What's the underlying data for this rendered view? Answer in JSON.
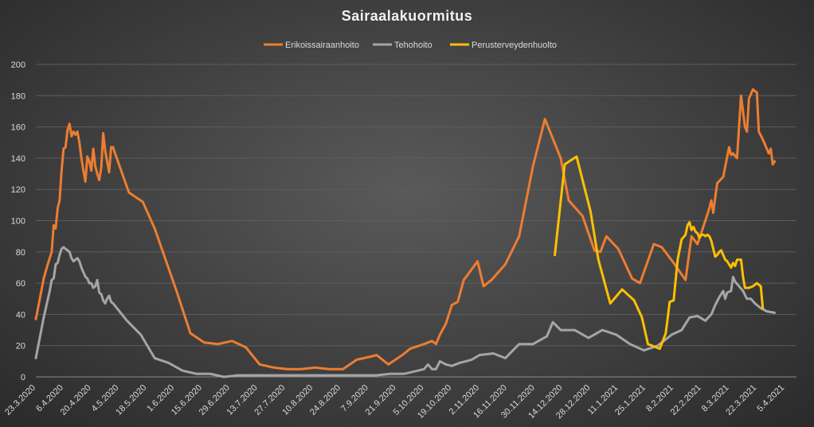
{
  "chart_data": {
    "type": "line",
    "title": "Sairaalakuormitus",
    "xlabel": "",
    "ylabel": "",
    "ylim": [
      0,
      200
    ],
    "yticks": [
      0,
      20,
      40,
      60,
      80,
      100,
      120,
      140,
      160,
      180,
      200
    ],
    "grid": true,
    "legend": "top-center",
    "x_range": [
      "23.3.2020",
      "11.4.2021"
    ],
    "xtick_labels": [
      "23.3.2020",
      "6.4.2020",
      "20.4.2020",
      "4.5.2020",
      "18.5.2020",
      "1.6.2020",
      "15.6.2020",
      "29.6.2020",
      "13.7.2020",
      "27.7.2020",
      "10.8.2020",
      "24.8.2020",
      "7.9.2020",
      "21.9.2020",
      "5.10.2020",
      "19.10.2020",
      "2.11.2020",
      "16.11.2020",
      "30.11.2020",
      "14.12.2020",
      "28.12.2020",
      "11.1.2021",
      "25.1.2021",
      "8.2.2021",
      "22.2.2021",
      "8.3.2021",
      "22.3.2021",
      "5.4.2021"
    ],
    "series": [
      {
        "name": "Erikoissairaanhoito",
        "color": "#ed7d31",
        "points": [
          [
            "23.3.2020",
            37
          ],
          [
            "25.3.2020",
            50
          ],
          [
            "27.3.2020",
            63
          ],
          [
            "29.3.2020",
            72
          ],
          [
            "31.3.2020",
            80
          ],
          [
            "1.4.2020",
            97
          ],
          [
            "2.4.2020",
            95
          ],
          [
            "3.4.2020",
            108
          ],
          [
            "4.4.2020",
            113
          ],
          [
            "5.4.2020",
            132
          ],
          [
            "6.4.2020",
            146
          ],
          [
            "7.4.2020",
            147
          ],
          [
            "8.4.2020",
            158
          ],
          [
            "9.4.2020",
            162
          ],
          [
            "10.4.2020",
            154
          ],
          [
            "11.4.2020",
            157
          ],
          [
            "12.4.2020",
            155
          ],
          [
            "13.4.2020",
            157
          ],
          [
            "14.4.2020",
            150
          ],
          [
            "15.4.2020",
            140
          ],
          [
            "16.4.2020",
            132
          ],
          [
            "17.4.2020",
            125
          ],
          [
            "18.4.2020",
            141
          ],
          [
            "19.4.2020",
            138
          ],
          [
            "20.4.2020",
            132
          ],
          [
            "21.4.2020",
            146
          ],
          [
            "22.4.2020",
            135
          ],
          [
            "23.4.2020",
            130
          ],
          [
            "24.4.2020",
            126
          ],
          [
            "25.4.2020",
            134
          ],
          [
            "26.4.2020",
            156
          ],
          [
            "27.4.2020",
            145
          ],
          [
            "28.4.2020",
            138
          ],
          [
            "29.4.2020",
            131
          ],
          [
            "30.4.2020",
            147
          ],
          [
            "1.5.2020",
            147
          ],
          [
            "2.5.2020",
            143
          ],
          [
            "9.5.2020",
            118
          ],
          [
            "16.5.2020",
            112
          ],
          [
            "22.5.2020",
            95
          ],
          [
            "2.6.2020",
            55
          ],
          [
            "9.6.2020",
            28
          ],
          [
            "16.6.2020",
            22
          ],
          [
            "23.6.2020",
            21
          ],
          [
            "30.6.2020",
            23
          ],
          [
            "7.7.2020",
            19
          ],
          [
            "14.7.2020",
            8
          ],
          [
            "21.7.2020",
            6
          ],
          [
            "28.7.2020",
            5
          ],
          [
            "4.8.2020",
            5
          ],
          [
            "11.8.2020",
            6
          ],
          [
            "18.8.2020",
            5
          ],
          [
            "25.8.2020",
            5
          ],
          [
            "1.9.2020",
            11
          ],
          [
            "8.9.2020",
            13
          ],
          [
            "11.9.2020",
            14
          ],
          [
            "17.9.2020",
            8
          ],
          [
            "24.9.2020",
            14
          ],
          [
            "28.9.2020",
            18
          ],
          [
            "5.10.2020",
            21
          ],
          [
            "9.10.2020",
            23
          ],
          [
            "11.10.2020",
            21
          ],
          [
            "13.10.2020",
            27
          ],
          [
            "16.10.2020",
            34
          ],
          [
            "19.10.2020",
            46
          ],
          [
            "22.10.2020",
            48
          ],
          [
            "25.10.2020",
            62
          ],
          [
            "1.11.2020",
            74
          ],
          [
            "4.11.2020",
            58
          ],
          [
            "8.11.2020",
            62
          ],
          [
            "15.11.2020",
            72
          ],
          [
            "22.11.2020",
            90
          ],
          [
            "29.11.2020",
            135
          ],
          [
            "5.12.2020",
            165
          ],
          [
            "13.12.2020",
            140
          ],
          [
            "17.12.2020",
            113
          ],
          [
            "24.12.2020",
            103
          ],
          [
            "30.12.2020",
            81
          ],
          [
            "2.1.2021",
            80
          ],
          [
            "5.1.2021",
            90
          ],
          [
            "11.1.2021",
            82
          ],
          [
            "18.1.2021",
            63
          ],
          [
            "22.1.2021",
            60
          ],
          [
            "29.1.2021",
            85
          ],
          [
            "2.2.2021",
            83
          ],
          [
            "8.2.2021",
            73
          ],
          [
            "14.2.2021",
            62
          ],
          [
            "17.2.2021",
            90
          ],
          [
            "20.2.2021",
            85
          ],
          [
            "24.2.2021",
            100
          ],
          [
            "26.2.2021",
            108
          ],
          [
            "27.2.2021",
            113
          ],
          [
            "28.2.2021",
            105
          ],
          [
            "1.3.2021",
            115
          ],
          [
            "2.3.2021",
            124
          ],
          [
            "5.3.2021",
            128
          ],
          [
            "8.3.2021",
            147
          ],
          [
            "9.3.2021",
            142
          ],
          [
            "10.3.2021",
            143
          ],
          [
            "12.3.2021",
            140
          ],
          [
            "14.3.2021",
            180
          ],
          [
            "16.3.2021",
            160
          ],
          [
            "17.3.2021",
            157
          ],
          [
            "18.3.2021",
            178
          ],
          [
            "20.3.2021",
            184
          ],
          [
            "22.3.2021",
            182
          ],
          [
            "23.3.2021",
            157
          ],
          [
            "25.3.2021",
            152
          ],
          [
            "27.3.2021",
            146
          ],
          [
            "28.3.2021",
            143
          ],
          [
            "29.3.2021",
            146
          ],
          [
            "30.3.2021",
            136
          ],
          [
            "31.3.2021",
            138
          ]
        ]
      },
      {
        "name": "Tehohoito",
        "color": "#a5a5a5",
        "points": [
          [
            "23.3.2020",
            12
          ],
          [
            "27.3.2020",
            38
          ],
          [
            "30.3.2020",
            55
          ],
          [
            "31.3.2020",
            62
          ],
          [
            "1.4.2020",
            63
          ],
          [
            "2.4.2020",
            72
          ],
          [
            "3.4.2020",
            73
          ],
          [
            "4.4.2020",
            78
          ],
          [
            "5.4.2020",
            82
          ],
          [
            "6.4.2020",
            83
          ],
          [
            "7.4.2020",
            82
          ],
          [
            "8.4.2020",
            81
          ],
          [
            "9.4.2020",
            80
          ],
          [
            "10.4.2020",
            76
          ],
          [
            "11.4.2020",
            74
          ],
          [
            "12.4.2020",
            75
          ],
          [
            "13.4.2020",
            76
          ],
          [
            "14.4.2020",
            74
          ],
          [
            "15.4.2020",
            70
          ],
          [
            "16.4.2020",
            67
          ],
          [
            "17.4.2020",
            64
          ],
          [
            "18.4.2020",
            63
          ],
          [
            "19.4.2020",
            60
          ],
          [
            "20.4.2020",
            60
          ],
          [
            "21.4.2020",
            57
          ],
          [
            "22.4.2020",
            58
          ],
          [
            "23.4.2020",
            62
          ],
          [
            "24.4.2020",
            54
          ],
          [
            "25.4.2020",
            53
          ],
          [
            "26.4.2020",
            49
          ],
          [
            "27.4.2020",
            47
          ],
          [
            "28.4.2020",
            50
          ],
          [
            "29.4.2020",
            52
          ],
          [
            "30.4.2020",
            48
          ],
          [
            "1.5.2020",
            47
          ],
          [
            "8.5.2020",
            36
          ],
          [
            "15.5.2020",
            27
          ],
          [
            "22.5.2020",
            12
          ],
          [
            "29.5.2020",
            9
          ],
          [
            "5.6.2020",
            4
          ],
          [
            "12.6.2020",
            2
          ],
          [
            "19.6.2020",
            2
          ],
          [
            "26.6.2020",
            0
          ],
          [
            "3.7.2020",
            1
          ],
          [
            "10.7.2020",
            1
          ],
          [
            "17.7.2020",
            1
          ],
          [
            "24.7.2020",
            1
          ],
          [
            "31.7.2020",
            1
          ],
          [
            "7.8.2020",
            1
          ],
          [
            "14.8.2020",
            1
          ],
          [
            "21.8.2020",
            1
          ],
          [
            "28.8.2020",
            1
          ],
          [
            "4.9.2020",
            1
          ],
          [
            "11.9.2020",
            1
          ],
          [
            "18.9.2020",
            2
          ],
          [
            "25.9.2020",
            2
          ],
          [
            "2.10.2020",
            4
          ],
          [
            "5.10.2020",
            5
          ],
          [
            "7.10.2020",
            8
          ],
          [
            "9.10.2020",
            5
          ],
          [
            "11.10.2020",
            5
          ],
          [
            "13.10.2020",
            10
          ],
          [
            "16.10.2020",
            8
          ],
          [
            "19.10.2020",
            7
          ],
          [
            "23.10.2020",
            9
          ],
          [
            "26.10.2020",
            10
          ],
          [
            "29.10.2020",
            11
          ],
          [
            "2.11.2020",
            14
          ],
          [
            "9.11.2020",
            15
          ],
          [
            "15.11.2020",
            12
          ],
          [
            "22.11.2020",
            21
          ],
          [
            "29.11.2020",
            21
          ],
          [
            "6.12.2020",
            26
          ],
          [
            "9.12.2020",
            35
          ],
          [
            "13.12.2020",
            30
          ],
          [
            "20.12.2020",
            30
          ],
          [
            "27.12.2020",
            25
          ],
          [
            "3.1.2021",
            30
          ],
          [
            "10.1.2021",
            27
          ],
          [
            "17.1.2021",
            21
          ],
          [
            "24.1.2021",
            17
          ],
          [
            "31.1.2021",
            20
          ],
          [
            "7.2.2021",
            27
          ],
          [
            "12.2.2021",
            30
          ],
          [
            "16.2.2021",
            38
          ],
          [
            "20.2.2021",
            39
          ],
          [
            "24.2.2021",
            36
          ],
          [
            "27.2.2021",
            40
          ],
          [
            "1.3.2021",
            46
          ],
          [
            "3.3.2021",
            51
          ],
          [
            "5.3.2021",
            55
          ],
          [
            "6.3.2021",
            50
          ],
          [
            "7.3.2021",
            54
          ],
          [
            "9.3.2021",
            55
          ],
          [
            "10.3.2021",
            64
          ],
          [
            "11.3.2021",
            61
          ],
          [
            "13.3.2021",
            58
          ],
          [
            "15.3.2021",
            55
          ],
          [
            "17.3.2021",
            50
          ],
          [
            "19.3.2021",
            50
          ],
          [
            "21.3.2021",
            47
          ],
          [
            "24.3.2021",
            44
          ],
          [
            "27.3.2021",
            42
          ],
          [
            "31.3.2021",
            41
          ]
        ]
      },
      {
        "name": "Perusterveydenhuolto",
        "color": "#ffc000",
        "points": [
          [
            "10.12.2020",
            78
          ],
          [
            "15.12.2020",
            136
          ],
          [
            "21.12.2020",
            141
          ],
          [
            "28.12.2020",
            106
          ],
          [
            "1.1.2021",
            75
          ],
          [
            "7.1.2021",
            47
          ],
          [
            "13.1.2021",
            56
          ],
          [
            "19.1.2021",
            49
          ],
          [
            "23.1.2021",
            38
          ],
          [
            "26.1.2021",
            21
          ],
          [
            "1.2.2021",
            18
          ],
          [
            "4.2.2021",
            28
          ],
          [
            "6.2.2021",
            48
          ],
          [
            "8.2.2021",
            49
          ],
          [
            "10.2.2021",
            75
          ],
          [
            "12.2.2021",
            88
          ],
          [
            "14.2.2021",
            91
          ],
          [
            "15.2.2021",
            97
          ],
          [
            "16.2.2021",
            99
          ],
          [
            "17.2.2021",
            94
          ],
          [
            "18.2.2021",
            96
          ],
          [
            "19.2.2021",
            93
          ],
          [
            "20.2.2021",
            92
          ],
          [
            "21.2.2021",
            89
          ],
          [
            "22.2.2021",
            91
          ],
          [
            "23.2.2021",
            91
          ],
          [
            "24.2.2021",
            90
          ],
          [
            "25.2.2021",
            91
          ],
          [
            "26.2.2021",
            90
          ],
          [
            "27.2.2021",
            87
          ],
          [
            "28.2.2021",
            82
          ],
          [
            "1.3.2021",
            77
          ],
          [
            "2.3.2021",
            78
          ],
          [
            "3.3.2021",
            80
          ],
          [
            "4.3.2021",
            81
          ],
          [
            "5.3.2021",
            78
          ],
          [
            "6.3.2021",
            75
          ],
          [
            "7.3.2021",
            74
          ],
          [
            "8.3.2021",
            72
          ],
          [
            "9.3.2021",
            70
          ],
          [
            "10.3.2021",
            73
          ],
          [
            "11.3.2021",
            71
          ],
          [
            "12.3.2021",
            75
          ],
          [
            "13.3.2021",
            75
          ],
          [
            "14.3.2021",
            75
          ],
          [
            "15.3.2021",
            64
          ],
          [
            "16.3.2021",
            57
          ],
          [
            "18.3.2021",
            57
          ],
          [
            "20.3.2021",
            58
          ],
          [
            "22.3.2021",
            60
          ],
          [
            "23.3.2021",
            59
          ],
          [
            "24.3.2021",
            58
          ],
          [
            "25.3.2021",
            44
          ]
        ]
      }
    ]
  }
}
